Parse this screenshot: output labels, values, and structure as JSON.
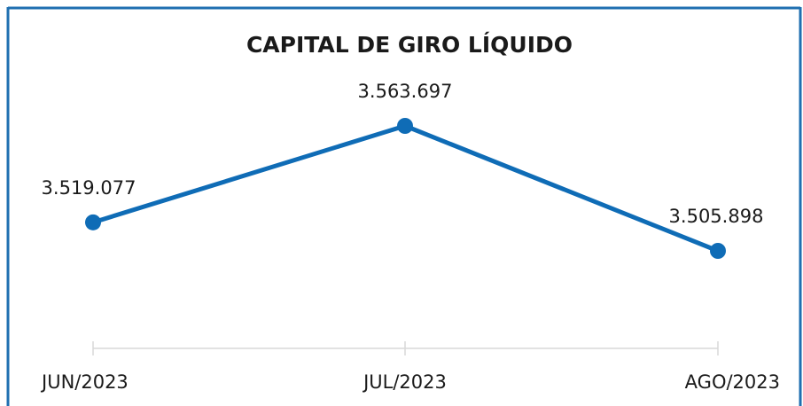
{
  "chart_data": {
    "type": "line",
    "title": "CAPITAL DE GIRO LÍQUIDO",
    "categories": [
      "JUN/2023",
      "JUL/2023",
      "AGO/2023"
    ],
    "series": [
      {
        "name": "Capital de Giro Líquido",
        "color": "#0f6cb6",
        "values": [
          3519077,
          3563697,
          3505898
        ],
        "value_labels": [
          "3.519.077",
          "3.563.697",
          "3.505.898"
        ]
      }
    ]
  }
}
